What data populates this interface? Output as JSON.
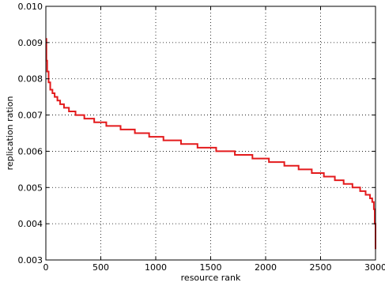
{
  "chart_data": {
    "type": "line",
    "title": "",
    "xlabel": "resource rank",
    "ylabel": "replication ration",
    "xlim": [
      0,
      3000
    ],
    "ylim": [
      0.003,
      0.01
    ],
    "grid": true,
    "line_style": "step",
    "x_ticks": [
      0,
      500,
      1000,
      1500,
      2000,
      2500,
      3000
    ],
    "x_tick_labels": [
      "0",
      "500",
      "1000",
      "1500",
      "2000",
      "2500",
      "3000"
    ],
    "y_ticks": [
      0.003,
      0.004,
      0.005,
      0.006,
      0.007,
      0.008,
      0.009,
      0.01
    ],
    "y_tick_labels": [
      "0.003",
      "0.004",
      "0.005",
      "0.006",
      "0.007",
      "0.008",
      "0.009",
      "0.010"
    ],
    "series": [
      {
        "color": "#e31a1c",
        "x": [
          0,
          5,
          12,
          25,
          40,
          60,
          80,
          105,
          130,
          165,
          210,
          270,
          350,
          440,
          550,
          680,
          810,
          940,
          1070,
          1230,
          1380,
          1550,
          1720,
          1880,
          2030,
          2170,
          2300,
          2420,
          2530,
          2630,
          2710,
          2790,
          2860,
          2910,
          2950,
          2970,
          2985,
          2993,
          3000
        ],
        "y": [
          0.0091,
          0.0085,
          0.0082,
          0.0079,
          0.0077,
          0.0076,
          0.0075,
          0.0074,
          0.0073,
          0.0072,
          0.0071,
          0.007,
          0.0069,
          0.0068,
          0.0067,
          0.0066,
          0.0065,
          0.0064,
          0.0063,
          0.0062,
          0.0061,
          0.006,
          0.0059,
          0.0058,
          0.0057,
          0.0056,
          0.0055,
          0.0054,
          0.0053,
          0.0052,
          0.0051,
          0.005,
          0.0049,
          0.0048,
          0.0047,
          0.0046,
          0.0044,
          0.004,
          0.0033
        ]
      }
    ]
  }
}
